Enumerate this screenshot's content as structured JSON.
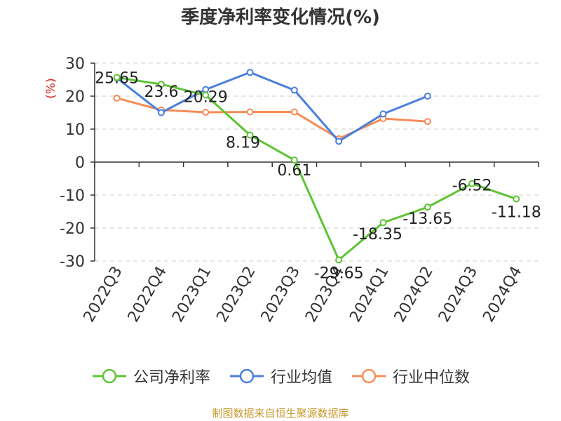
{
  "chart_data": {
    "type": "line",
    "title": "季度净利率变化情况(%)",
    "ylabel": "(%)",
    "categories": [
      "2022Q3",
      "2022Q4",
      "2023Q1",
      "2023Q2",
      "2023Q3",
      "2023Q4",
      "2024Q1",
      "2024Q2",
      "2024Q3",
      "2024Q4"
    ],
    "ylim": [
      -30,
      30
    ],
    "yticks": [
      30,
      20,
      10,
      0,
      -10,
      -20,
      -30
    ],
    "grid": true,
    "legend_position": "bottom",
    "series": [
      {
        "name": "公司净利率",
        "color": "#5dc433",
        "values": [
          25.65,
          23.6,
          20.29,
          8.19,
          0.61,
          -29.65,
          -18.35,
          -13.65,
          -6.52,
          -11.18
        ],
        "labels": [
          "25.65",
          "23.6",
          "20.29",
          "8.19",
          "0.61",
          "-29.65",
          "-18.35",
          "-13.65",
          "-6.52",
          "-11.18"
        ]
      },
      {
        "name": "行业均值",
        "color": "#4a7fdb",
        "values": [
          25.5,
          15.0,
          22.0,
          27.2,
          21.8,
          6.3,
          14.6,
          20.0,
          null,
          null
        ]
      },
      {
        "name": "行业中位数",
        "color": "#f68c58",
        "values": [
          19.4,
          15.8,
          15.1,
          15.2,
          15.2,
          7.1,
          13.2,
          12.3,
          null,
          null
        ]
      }
    ]
  },
  "source": "制图数据来自恒生聚源数据库"
}
